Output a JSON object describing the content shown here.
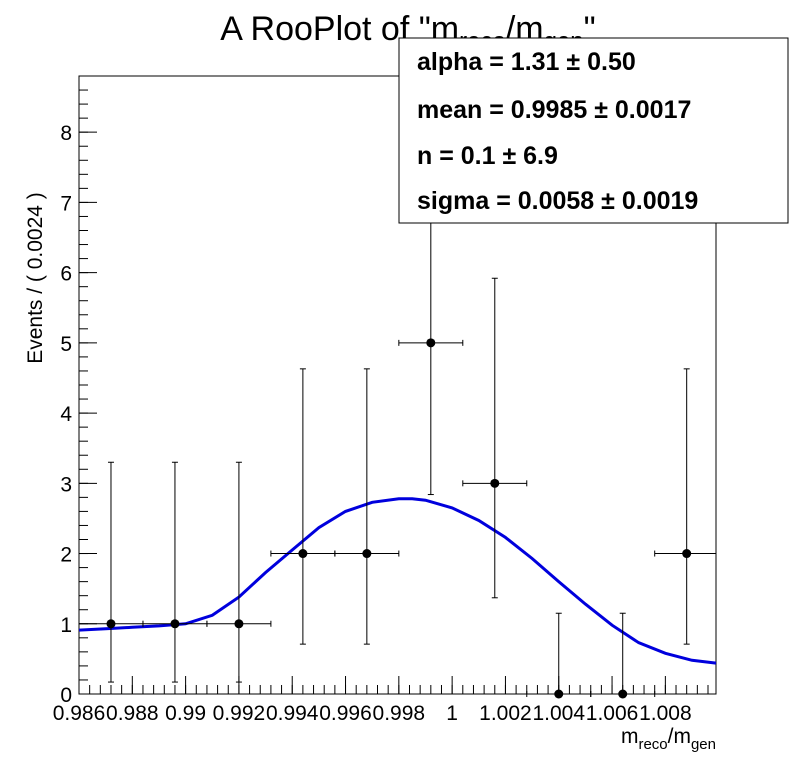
{
  "chart_data": {
    "type": "scatter",
    "title": {
      "prefix": "A RooPlot of \"m",
      "sub1": "reco",
      "mid": "/m",
      "sub2": "gen",
      "suffix": "\""
    },
    "xlabel": {
      "m": "m",
      "sub1": "reco",
      "slash": "/m",
      "sub2": "gen"
    },
    "ylabel": "Events / ( 0.0024 )",
    "xlim": [
      0.986,
      1.0099
    ],
    "ylim": [
      0,
      8.8
    ],
    "bin_width": 0.0024,
    "x_ticks": [
      "0.986",
      "0.988",
      "0.99",
      "0.992",
      "0.994",
      "0.996",
      "0.998",
      "1",
      "1.002",
      "1.004",
      "1.006",
      "1.008"
    ],
    "y_ticks": [
      "0",
      "1",
      "2",
      "3",
      "4",
      "5",
      "6",
      "7",
      "8"
    ],
    "series": [
      {
        "kind": "data",
        "color": "#000000",
        "points": [
          {
            "x": 0.9872,
            "y": 1,
            "ylo": 0.17,
            "yhi": 3.3
          },
          {
            "x": 0.9896,
            "y": 1,
            "ylo": 0.17,
            "yhi": 3.3
          },
          {
            "x": 0.992,
            "y": 1,
            "ylo": 0.17,
            "yhi": 3.3
          },
          {
            "x": 0.9944,
            "y": 2,
            "ylo": 0.71,
            "yhi": 4.63
          },
          {
            "x": 0.9968,
            "y": 2,
            "ylo": 0.71,
            "yhi": 4.63
          },
          {
            "x": 0.9992,
            "y": 5,
            "ylo": 2.84,
            "yhi": 8.8
          },
          {
            "x": 1.0016,
            "y": 3,
            "ylo": 1.37,
            "yhi": 5.92
          },
          {
            "x": 1.004,
            "y": 0,
            "ylo": 0,
            "yhi": 1.15
          },
          {
            "x": 1.0064,
            "y": 0,
            "ylo": 0,
            "yhi": 1.15
          },
          {
            "x": 1.0088,
            "y": 2,
            "ylo": 0.71,
            "yhi": 4.63
          }
        ]
      },
      {
        "kind": "fit",
        "color": "#0000dd",
        "x": [
          0.986,
          0.987,
          0.988,
          0.989,
          0.99,
          0.991,
          0.992,
          0.993,
          0.994,
          0.995,
          0.996,
          0.997,
          0.998,
          0.9985,
          0.999,
          1.0,
          1.001,
          1.002,
          1.003,
          1.004,
          1.005,
          1.006,
          1.007,
          1.008,
          1.009,
          1.0099
        ],
        "y": [
          0.91,
          0.93,
          0.95,
          0.97,
          1.0,
          1.12,
          1.38,
          1.73,
          2.05,
          2.37,
          2.6,
          2.73,
          2.78,
          2.78,
          2.76,
          2.65,
          2.47,
          2.23,
          1.93,
          1.6,
          1.28,
          0.98,
          0.73,
          0.58,
          0.48,
          0.44
        ]
      }
    ],
    "legend": {
      "position": "top-right",
      "entries": [
        {
          "label": "alpha =  1.31",
          "pm": "±",
          "err": "0.50"
        },
        {
          "label": "mean =  0.9985",
          "pm": "±",
          "err": "0.0017"
        },
        {
          "label": "n =  0.1",
          "pm": "±",
          "err": "6.9"
        },
        {
          "label": "sigma =  0.0058",
          "pm": "±",
          "err": "0.0019"
        }
      ]
    },
    "grid": false
  }
}
